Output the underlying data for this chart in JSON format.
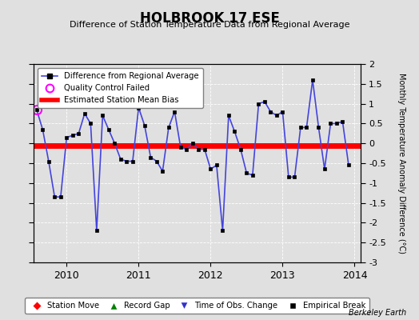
{
  "title": "HOLBROOK 17 ESE",
  "subtitle": "Difference of Station Temperature Data from Regional Average",
  "ylabel_right": "Monthly Temperature Anomaly Difference (°C)",
  "bias_value": -0.05,
  "xlim": [
    2009.54,
    2014.08
  ],
  "ylim": [
    -3.0,
    2.0
  ],
  "yticks": [
    -3.0,
    -2.5,
    -2.0,
    -1.5,
    -1.0,
    -0.5,
    0.0,
    0.5,
    1.0,
    1.5,
    2.0
  ],
  "background_color": "#e0e0e0",
  "plot_bg_color": "#e0e0e0",
  "line_color": "#4444dd",
  "bias_color": "#ff0000",
  "credit": "Berkeley Earth",
  "x_data": [
    2009.583,
    2009.667,
    2009.75,
    2009.833,
    2009.917,
    2010.0,
    2010.083,
    2010.167,
    2010.25,
    2010.333,
    2010.417,
    2010.5,
    2010.583,
    2010.667,
    2010.75,
    2010.833,
    2010.917,
    2011.0,
    2011.083,
    2011.167,
    2011.25,
    2011.333,
    2011.417,
    2011.5,
    2011.583,
    2011.667,
    2011.75,
    2011.833,
    2011.917,
    2012.0,
    2012.083,
    2012.167,
    2012.25,
    2012.333,
    2012.417,
    2012.5,
    2012.583,
    2012.667,
    2012.75,
    2012.833,
    2012.917,
    2013.0,
    2013.083,
    2013.167,
    2013.25,
    2013.333,
    2013.417,
    2013.5,
    2013.583,
    2013.667,
    2013.75,
    2013.833,
    2013.917
  ],
  "y_data": [
    0.85,
    0.35,
    -0.45,
    -1.35,
    -1.35,
    0.15,
    0.2,
    0.25,
    0.75,
    0.5,
    -2.2,
    0.7,
    0.35,
    0.0,
    -0.4,
    -0.45,
    -0.45,
    0.9,
    0.45,
    -0.35,
    -0.45,
    -0.7,
    0.4,
    0.8,
    -0.1,
    -0.15,
    0.0,
    -0.15,
    -0.15,
    -0.65,
    -0.55,
    -2.2,
    0.7,
    0.3,
    -0.15,
    -0.75,
    -0.8,
    1.0,
    1.05,
    0.8,
    0.7,
    0.8,
    -0.85,
    -0.85,
    0.4,
    0.4,
    1.6,
    0.4,
    -0.65,
    0.5,
    0.5,
    0.55,
    -0.55
  ],
  "qc_failed_x": [
    2009.583
  ],
  "qc_failed_y": [
    0.85
  ]
}
